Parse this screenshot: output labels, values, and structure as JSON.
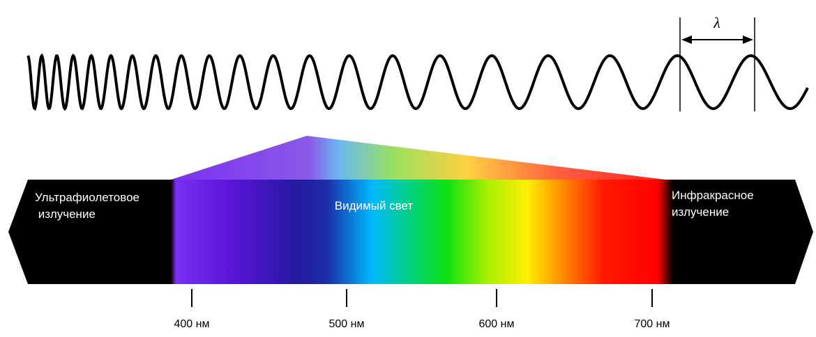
{
  "wave": {
    "wavelength_symbol": "λ"
  },
  "spectrum": {
    "ultraviolet": {
      "lines": [
        "Ультрафиолетовое",
        " излучение"
      ]
    },
    "visible": {
      "label": "Видимый свет"
    },
    "infrared": {
      "lines": [
        "Инфракрасное",
        "излучение"
      ]
    },
    "ticks": [
      {
        "label": "400 нм"
      },
      {
        "label": "500 нм"
      },
      {
        "label": "600 нм"
      },
      {
        "label": "700 нм"
      }
    ]
  }
}
